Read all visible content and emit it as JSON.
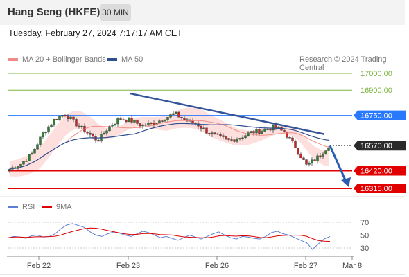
{
  "header": {
    "title": "Hang Seng (HKFE)",
    "interval": "30 MIN"
  },
  "timestamp": "Tuesday, February 27, 2024 7:17:17 AM CET",
  "legend": {
    "ma20_label": "MA 20 + Bollinger Bands",
    "ma20_color": "#f08c86",
    "ma50_label": "MA 50",
    "ma50_color": "#2f4f8f",
    "source": "Research © 2024 Trading Central"
  },
  "rsi_legend": {
    "rsi_label": "RSI",
    "rsi_color": "#5a7fd6",
    "ma9_label": "9MA",
    "ma9_color": "#dd0000"
  },
  "chart_data": {
    "type": "candlestick",
    "instrument": "Hang Seng (HKFE)",
    "timeframe": "30 MIN",
    "x_ticks": [
      "Feb 22",
      "Feb 23",
      "Feb 26",
      "Feb 27",
      "Mar 8"
    ],
    "y_range": [
      16280,
      17060
    ],
    "levels": [
      {
        "value": 17000,
        "label": "17000.00",
        "role": "target",
        "color": "#7cb342"
      },
      {
        "value": 16900,
        "label": "16900.00",
        "role": "target",
        "color": "#7cb342"
      },
      {
        "value": 16750,
        "label": "16750.00",
        "role": "pivot",
        "color": "#2979ff"
      },
      {
        "value": 16570,
        "label": "16570.00",
        "role": "last price",
        "color": "#222222"
      },
      {
        "value": 16420,
        "label": "16420.00",
        "role": "support",
        "color": "#e00000"
      },
      {
        "value": 16315,
        "label": "16315.00",
        "role": "support",
        "color": "#e00000"
      }
    ],
    "trendline": {
      "from": {
        "date": "Feb 23",
        "value": 16880
      },
      "to": {
        "date": "Feb 27",
        "value": 16638
      }
    },
    "forecast_arrow": {
      "from": 16570,
      "to": 16315
    },
    "series_trend": [
      16430,
      16460,
      16520,
      16640,
      16720,
      16760,
      16700,
      16650,
      16600,
      16680,
      16730,
      16720,
      16690,
      16700,
      16730,
      16760,
      16720,
      16700,
      16650,
      16620,
      16600,
      16620,
      16650,
      16660,
      16680,
      16650,
      16560,
      16450,
      16500,
      16570
    ],
    "rsi": {
      "levels": [
        70,
        50,
        30
      ],
      "range": [
        15,
        85
      ],
      "values": [
        46,
        48,
        47,
        45,
        49,
        50,
        47,
        48,
        52,
        60,
        66,
        68,
        65,
        62,
        55,
        50,
        48,
        52,
        55,
        53,
        50,
        48,
        52,
        56,
        54,
        50,
        46,
        48,
        45,
        42,
        46,
        50,
        47,
        44,
        48,
        52,
        55,
        50,
        46,
        44,
        48,
        47,
        45,
        44,
        48,
        54,
        56,
        52,
        50,
        46,
        42,
        38,
        28,
        36,
        44,
        48
      ]
    }
  }
}
